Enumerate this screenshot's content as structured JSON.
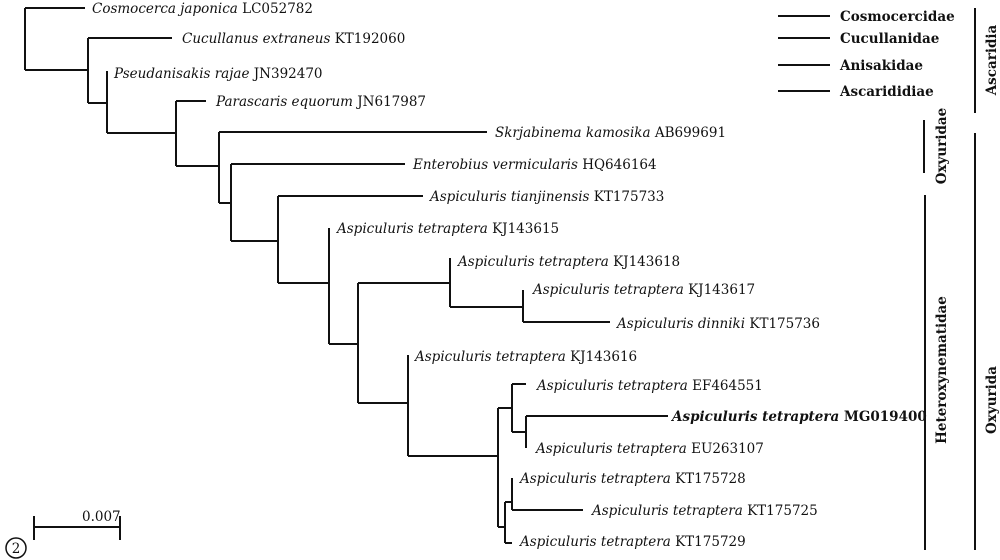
{
  "tree": {
    "leaves": [
      {
        "species": "Cosmocerca japonica",
        "accession": "LC052782",
        "highlighted": false
      },
      {
        "species": "Cucullanus  extraneus",
        "accession": "KT192060",
        "highlighted": false
      },
      {
        "species": "Pseudanisakis rajae",
        "accession": "JN392470",
        "highlighted": false
      },
      {
        "species": "Parascaris equorum",
        "accession": "JN617987",
        "highlighted": false
      },
      {
        "species": "Skrjabinema kamosika",
        "accession": "AB699691",
        "highlighted": false
      },
      {
        "species": "Enterobius vermicularis",
        "accession": "HQ646164",
        "highlighted": false
      },
      {
        "species": "Aspiculuris tianjinensis",
        "accession": "KT175733",
        "highlighted": false
      },
      {
        "species": "Aspiculuris tetraptera",
        "accession": "KJ143615",
        "highlighted": false
      },
      {
        "species": "Aspiculuris tetraptera",
        "accession": "KJ143618",
        "highlighted": false
      },
      {
        "species": "Aspiculuris tetraptera",
        "accession": "KJ143617",
        "highlighted": false
      },
      {
        "species": "Aspiculuris dinniki",
        "accession": "KT175736",
        "highlighted": false
      },
      {
        "species": "Aspiculuris tetraptera",
        "accession": "KJ143616",
        "highlighted": false
      },
      {
        "species": "Aspiculuris tetraptera",
        "accession": "EF464551",
        "highlighted": false
      },
      {
        "species": "Aspiculuris tetraptera",
        "accession": "MG019400",
        "highlighted": true
      },
      {
        "species": "Aspiculuris tetraptera",
        "accession": "EU263107",
        "highlighted": false
      },
      {
        "species": "Aspiculuris tetraptera",
        "accession": "KT175728",
        "highlighted": false
      },
      {
        "species": "Aspiculuris tetraptera",
        "accession": "KT175725",
        "highlighted": false
      },
      {
        "species": "Aspiculuris tetraptera",
        "accession": "KT175729",
        "highlighted": false
      }
    ]
  },
  "families": [
    "Cosmocercidae",
    "Cucullanidae",
    "Anisakidae",
    "Ascarididiae"
  ],
  "clades": {
    "oxyuridae": "Oxyuridae",
    "heteroxynematidae": "Heteroxynematidae",
    "ascaridia": "Ascaridia",
    "oxyurida": "Oxyurida"
  },
  "scale_bar": {
    "label": "0.007"
  },
  "panel_number": "2"
}
